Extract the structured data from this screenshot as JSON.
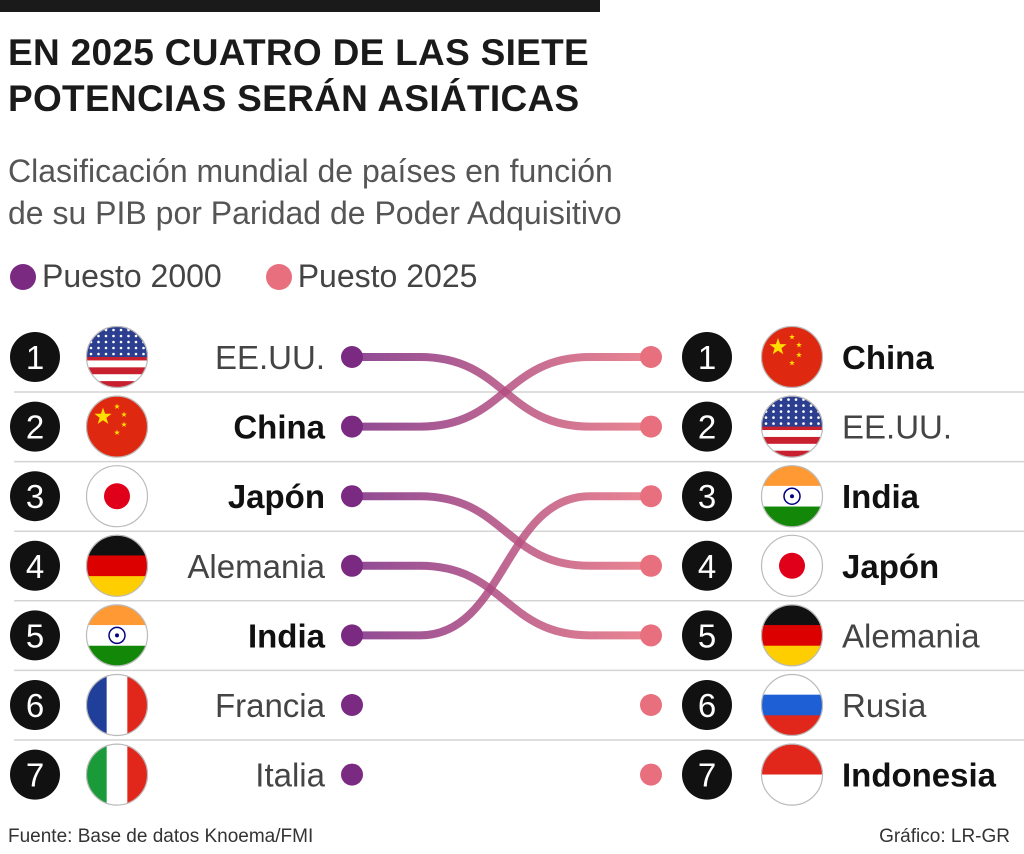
{
  "title_lines": [
    "EN 2025 CUATRO DE LAS SIETE",
    "POTENCIAS SERÁN ASIÁTICAS"
  ],
  "subtitle_lines": [
    "Clasificación mundial de países en función",
    "de su PIB por Paridad de Poder Adquisitivo"
  ],
  "legend": [
    {
      "label": "Puesto 2000",
      "color": "#7b2a82"
    },
    {
      "label": "Puesto 2025",
      "color": "#e8707e"
    }
  ],
  "chart_data": {
    "type": "bump",
    "series": [
      {
        "name": "Puesto 2000",
        "ranking": [
          {
            "rank": 1,
            "country": "EE.UU.",
            "flag": "us-flag-icon",
            "asian": false
          },
          {
            "rank": 2,
            "country": "China",
            "flag": "china-flag-icon",
            "asian": true
          },
          {
            "rank": 3,
            "country": "Japón",
            "flag": "japan-flag-icon",
            "asian": true
          },
          {
            "rank": 4,
            "country": "Alemania",
            "flag": "germany-flag-icon",
            "asian": false
          },
          {
            "rank": 5,
            "country": "India",
            "flag": "india-flag-icon",
            "asian": true
          },
          {
            "rank": 6,
            "country": "Francia",
            "flag": "france-flag-icon",
            "asian": false
          },
          {
            "rank": 7,
            "country": "Italia",
            "flag": "italy-flag-icon",
            "asian": false
          }
        ]
      },
      {
        "name": "Puesto 2025",
        "ranking": [
          {
            "rank": 1,
            "country": "China",
            "flag": "china-flag-icon",
            "asian": true
          },
          {
            "rank": 2,
            "country": "EE.UU.",
            "flag": "us-flag-icon",
            "asian": false
          },
          {
            "rank": 3,
            "country": "India",
            "flag": "india-flag-icon",
            "asian": true
          },
          {
            "rank": 4,
            "country": "Japón",
            "flag": "japan-flag-icon",
            "asian": true
          },
          {
            "rank": 5,
            "country": "Alemania",
            "flag": "germany-flag-icon",
            "asian": false
          },
          {
            "rank": 6,
            "country": "Rusia",
            "flag": "russia-flag-icon",
            "asian": false
          },
          {
            "rank": 7,
            "country": "Indonesia",
            "flag": "indonesia-flag-icon",
            "asian": true
          }
        ]
      }
    ],
    "connections": [
      {
        "country": "EE.UU.",
        "from": 1,
        "to": 2
      },
      {
        "country": "China",
        "from": 2,
        "to": 1
      },
      {
        "country": "Japón",
        "from": 3,
        "to": 4
      },
      {
        "country": "Alemania",
        "from": 4,
        "to": 5
      },
      {
        "country": "India",
        "from": 5,
        "to": 3
      }
    ]
  },
  "footer": {
    "source": "Fuente: Base de datos Knoema/FMI",
    "credit": "Gráfico: LR-GR"
  }
}
